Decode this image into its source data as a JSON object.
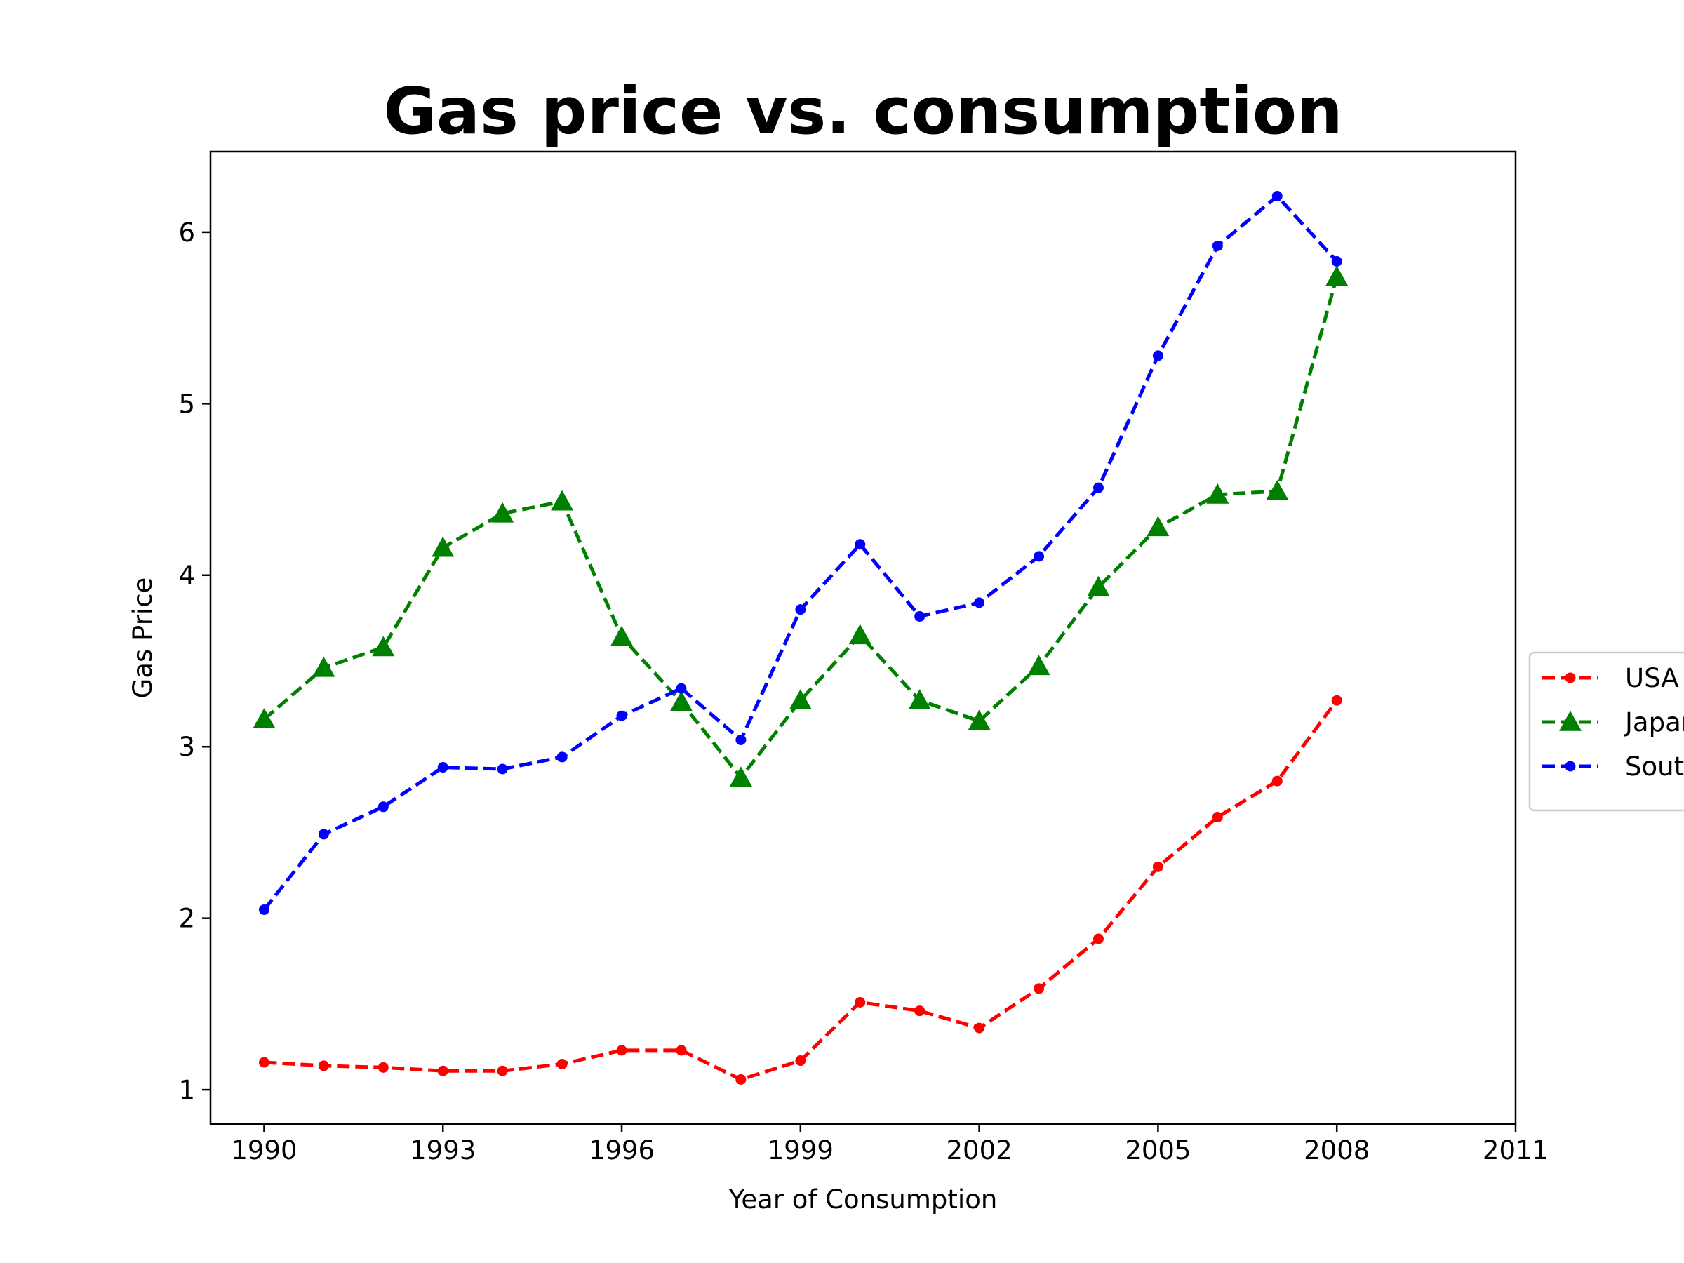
{
  "chart_data": {
    "type": "line",
    "title": "Gas price vs. consumption",
    "xlabel": "Year of Consumption",
    "ylabel": "Gas Price",
    "xlim": [
      1989.1,
      2011
    ],
    "ylim": [
      0.8,
      6.47
    ],
    "xticks": [
      1990,
      1993,
      1996,
      1999,
      2002,
      2005,
      2008,
      2011
    ],
    "yticks": [
      1,
      2,
      3,
      4,
      5,
      6
    ],
    "grid": false,
    "legend_position": "center-right",
    "x": [
      1990,
      1991,
      1992,
      1993,
      1994,
      1995,
      1996,
      1997,
      1998,
      1999,
      2000,
      2001,
      2002,
      2003,
      2004,
      2005,
      2006,
      2007,
      2008
    ],
    "series": [
      {
        "name": "USA",
        "color": "#ff0000",
        "marker": "dot",
        "values": [
          1.16,
          1.14,
          1.13,
          1.11,
          1.11,
          1.15,
          1.23,
          1.23,
          1.06,
          1.17,
          1.51,
          1.46,
          1.36,
          1.59,
          1.88,
          2.3,
          2.59,
          2.8,
          3.27
        ]
      },
      {
        "name": "Japan",
        "color": "#008000",
        "marker": "triangle",
        "values": [
          3.16,
          3.46,
          3.58,
          4.16,
          4.36,
          4.43,
          3.64,
          3.26,
          2.82,
          3.27,
          3.65,
          3.27,
          3.15,
          3.47,
          3.93,
          4.28,
          4.47,
          4.49,
          5.74
        ]
      },
      {
        "name": "South Korea",
        "color": "#0000ff",
        "marker": "dot",
        "values": [
          2.05,
          2.49,
          2.65,
          2.88,
          2.87,
          2.94,
          3.18,
          3.34,
          3.04,
          3.8,
          4.18,
          3.76,
          3.84,
          4.11,
          4.51,
          5.28,
          5.92,
          6.21,
          5.83
        ]
      }
    ]
  }
}
